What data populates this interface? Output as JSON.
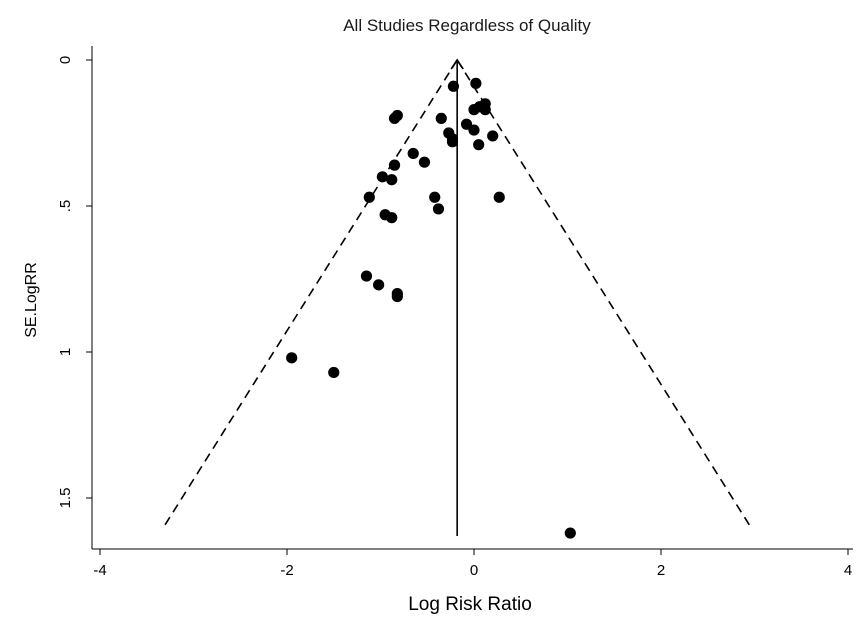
{
  "chart_data": {
    "type": "scatter",
    "title": "All Studies Regardless of Quality",
    "xlabel": "Log Risk Ratio",
    "ylabel": "SE.LogRR",
    "xlim": [
      -4.2,
      4.1
    ],
    "ylim": [
      0,
      1.65
    ],
    "y_reversed": true,
    "grid": false,
    "legend": "none",
    "x_ticks": [
      {
        "value": -4,
        "label": "-4"
      },
      {
        "value": -2,
        "label": "-2"
      },
      {
        "value": 0,
        "label": "0"
      },
      {
        "value": 2,
        "label": "2"
      },
      {
        "value": 4,
        "label": "4"
      }
    ],
    "y_ticks": [
      {
        "value": 0,
        "label": "0"
      },
      {
        "value": 0.5,
        "label": ".5"
      },
      {
        "value": 1,
        "label": "1"
      },
      {
        "value": 1.5,
        "label": "1.5"
      }
    ],
    "pooled_estimate": -0.18,
    "funnel": {
      "apex": [
        -0.18,
        0
      ],
      "max_se": 1.6,
      "left_x": -3.32,
      "right_x": 2.96
    },
    "points": [
      {
        "x": 0.02,
        "y": 0.08
      },
      {
        "x": -0.22,
        "y": 0.09
      },
      {
        "x": 0.12,
        "y": 0.15
      },
      {
        "x": 0.06,
        "y": 0.16
      },
      {
        "x": 0.0,
        "y": 0.17
      },
      {
        "x": 0.12,
        "y": 0.17
      },
      {
        "x": -0.82,
        "y": 0.19
      },
      {
        "x": -0.85,
        "y": 0.2
      },
      {
        "x": -0.35,
        "y": 0.2
      },
      {
        "x": -0.08,
        "y": 0.22
      },
      {
        "x": 0.0,
        "y": 0.24
      },
      {
        "x": -0.27,
        "y": 0.25
      },
      {
        "x": 0.2,
        "y": 0.26
      },
      {
        "x": -0.23,
        "y": 0.27
      },
      {
        "x": -0.23,
        "y": 0.28
      },
      {
        "x": 0.05,
        "y": 0.29
      },
      {
        "x": -0.65,
        "y": 0.32
      },
      {
        "x": -0.53,
        "y": 0.35
      },
      {
        "x": -0.85,
        "y": 0.36
      },
      {
        "x": -0.98,
        "y": 0.4
      },
      {
        "x": -0.88,
        "y": 0.41
      },
      {
        "x": -1.12,
        "y": 0.47
      },
      {
        "x": -0.42,
        "y": 0.47
      },
      {
        "x": 0.27,
        "y": 0.47
      },
      {
        "x": -0.38,
        "y": 0.51
      },
      {
        "x": -0.95,
        "y": 0.53
      },
      {
        "x": -0.88,
        "y": 0.54
      },
      {
        "x": -1.15,
        "y": 0.74
      },
      {
        "x": -1.02,
        "y": 0.77
      },
      {
        "x": -0.82,
        "y": 0.8
      },
      {
        "x": -0.82,
        "y": 0.81
      },
      {
        "x": -1.95,
        "y": 1.02
      },
      {
        "x": -1.5,
        "y": 1.07
      },
      {
        "x": 1.03,
        "y": 1.62
      }
    ]
  }
}
